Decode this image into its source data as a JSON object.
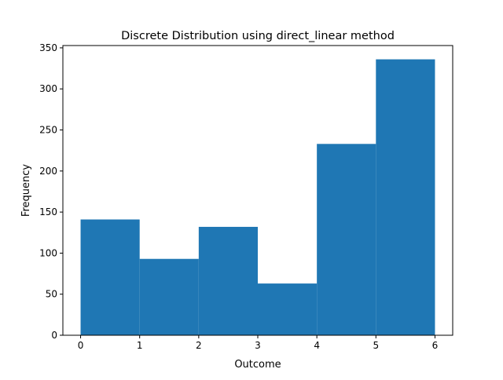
{
  "chart_data": {
    "type": "bar",
    "title": "Discrete Distribution using direct_linear method",
    "xlabel": "Outcome",
    "ylabel": "Frequency",
    "bins": [
      {
        "start": 0,
        "end": 1,
        "value": 141
      },
      {
        "start": 1,
        "end": 2,
        "value": 93
      },
      {
        "start": 2,
        "end": 3,
        "value": 132
      },
      {
        "start": 3,
        "end": 4,
        "value": 63
      },
      {
        "start": 4,
        "end": 5,
        "value": 233
      },
      {
        "start": 5,
        "end": 6,
        "value": 336
      }
    ],
    "xlim": [
      -0.3,
      6.3
    ],
    "ylim": [
      0,
      352.8
    ],
    "xticks": [
      0,
      1,
      2,
      3,
      4,
      5,
      6
    ],
    "yticks": [
      0,
      50,
      100,
      150,
      200,
      250,
      300,
      350
    ],
    "grid": false,
    "legend": "none",
    "bar_color": "#1f77b4"
  }
}
